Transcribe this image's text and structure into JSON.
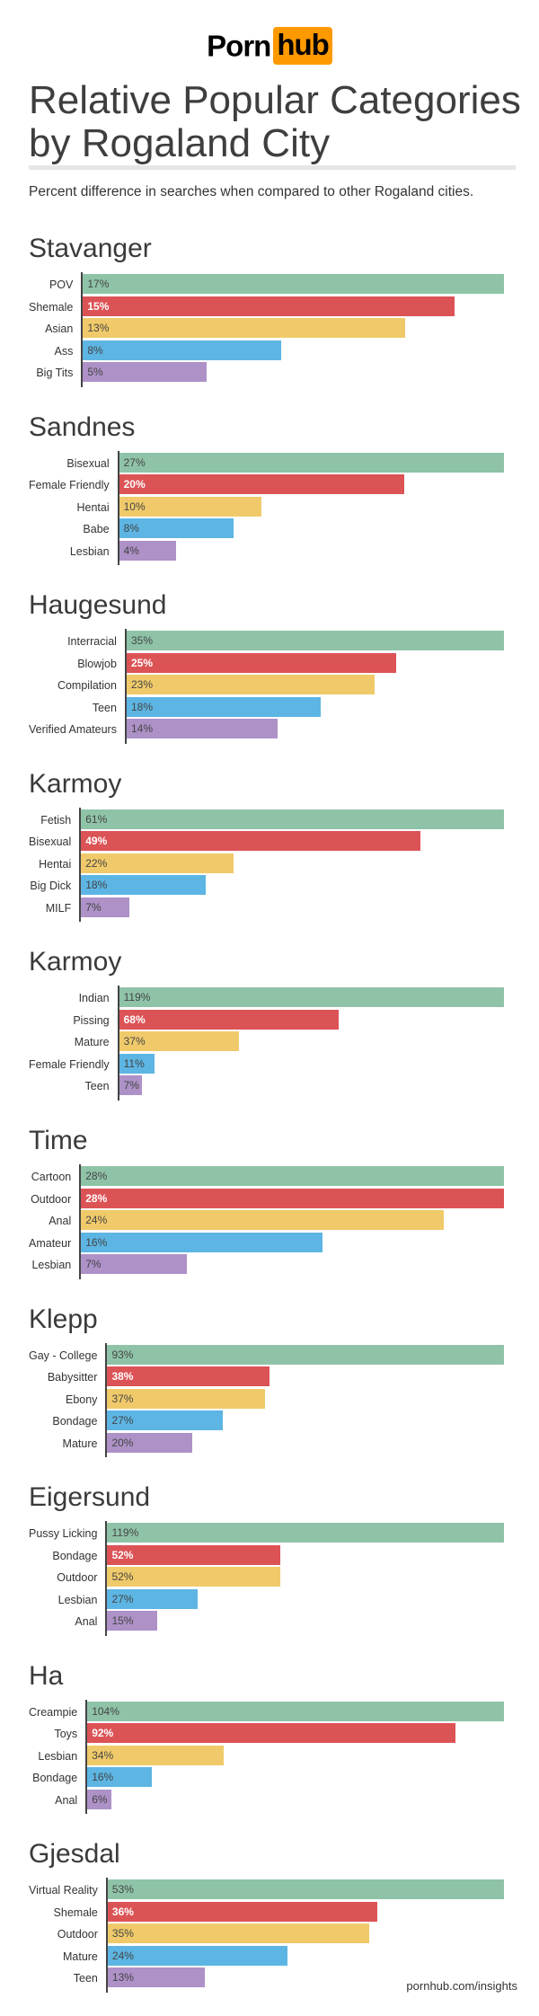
{
  "header": {
    "logo_left": "Porn",
    "logo_right": "hub",
    "title": "Relative Popular Categories by Rogaland City",
    "subtitle": "Percent difference in searches when compared to other Rogaland cities."
  },
  "footer": "pornhub.com/insights",
  "colors": [
    "#8fc3a8",
    "#dc5356",
    "#f0ca6a",
    "#5db5e3",
    "#ad91c7"
  ],
  "chart_data": [
    {
      "type": "bar",
      "orientation": "horizontal",
      "title": "Stavanger",
      "categories": [
        "POV",
        "Shemale",
        "Asian",
        "Ass",
        "Big Tits"
      ],
      "values": [
        17,
        15,
        13,
        8,
        5
      ],
      "unit": "%"
    },
    {
      "type": "bar",
      "orientation": "horizontal",
      "title": "Sandnes",
      "categories": [
        "Bisexual",
        "Female Friendly",
        "Hentai",
        "Babe",
        "Lesbian"
      ],
      "values": [
        27,
        20,
        10,
        8,
        4
      ],
      "unit": "%"
    },
    {
      "type": "bar",
      "orientation": "horizontal",
      "title": "Haugesund",
      "categories": [
        "Interracial",
        "Blowjob",
        "Compilation",
        "Teen",
        "Verified Amateurs"
      ],
      "values": [
        35,
        25,
        23,
        18,
        14
      ],
      "unit": "%"
    },
    {
      "type": "bar",
      "orientation": "horizontal",
      "title": "Karmoy",
      "categories": [
        "Fetish",
        "Bisexual",
        "Hentai",
        "Big Dick",
        "MILF"
      ],
      "values": [
        61,
        49,
        22,
        18,
        7
      ],
      "unit": "%"
    },
    {
      "type": "bar",
      "orientation": "horizontal",
      "title": "Karmoy",
      "categories": [
        "Indian",
        "Pissing",
        "Mature",
        "Female Friendly",
        "Teen"
      ],
      "values": [
        119,
        68,
        37,
        11,
        7
      ],
      "unit": "%"
    },
    {
      "type": "bar",
      "orientation": "horizontal",
      "title": "Time",
      "categories": [
        "Cartoon",
        "Outdoor",
        "Anal",
        "Amateur",
        "Lesbian"
      ],
      "values": [
        28,
        28,
        24,
        16,
        7
      ],
      "unit": "%"
    },
    {
      "type": "bar",
      "orientation": "horizontal",
      "title": "Klepp",
      "categories": [
        "Gay - College",
        "Babysitter",
        "Ebony",
        "Bondage",
        "Mature"
      ],
      "values": [
        93,
        38,
        37,
        27,
        20
      ],
      "unit": "%"
    },
    {
      "type": "bar",
      "orientation": "horizontal",
      "title": "Eigersund",
      "categories": [
        "Pussy Licking",
        "Bondage",
        "Outdoor",
        "Lesbian",
        "Anal"
      ],
      "values": [
        119,
        52,
        52,
        27,
        15
      ],
      "unit": "%"
    },
    {
      "type": "bar",
      "orientation": "horizontal",
      "title": "Ha",
      "categories": [
        "Creampie",
        "Toys",
        "Lesbian",
        "Bondage",
        "Anal"
      ],
      "values": [
        104,
        92,
        34,
        16,
        6
      ],
      "unit": "%"
    },
    {
      "type": "bar",
      "orientation": "horizontal",
      "title": "Gjesdal",
      "categories": [
        "Virtual Reality",
        "Shemale",
        "Outdoor",
        "Mature",
        "Teen"
      ],
      "values": [
        53,
        36,
        35,
        24,
        13
      ],
      "unit": "%"
    }
  ]
}
